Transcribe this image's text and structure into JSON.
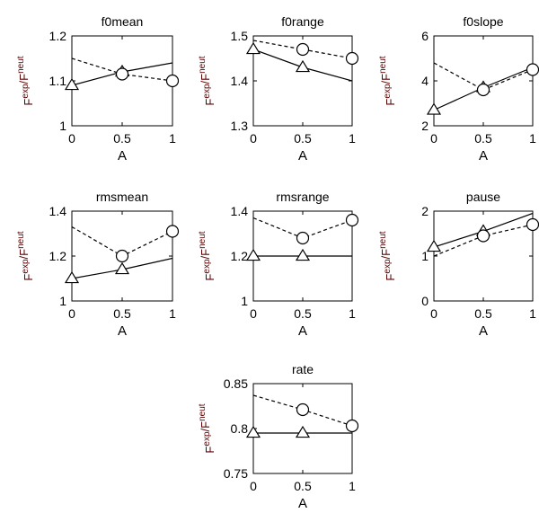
{
  "ylabel_base": "F",
  "ylabel_sup1": "exp",
  "ylabel_slash": "/",
  "ylabel_sup2": "neut",
  "chart_data": [
    {
      "type": "line",
      "title": "f0mean",
      "xlabel": "A",
      "x": [
        0,
        0.5,
        1
      ],
      "xticks": [
        "0",
        "0.5",
        "1"
      ],
      "ylim": [
        1.0,
        1.2
      ],
      "yticks": [
        "1",
        "1.1",
        "1.2"
      ],
      "series": [
        {
          "style": "solid",
          "marker": "triangle",
          "values": [
            1.09,
            1.12,
            1.14
          ]
        },
        {
          "style": "dashed",
          "marker": "circle",
          "values": [
            1.15,
            1.115,
            1.1
          ]
        }
      ],
      "dashed_start": 1.15,
      "dashed_marker_values": [
        null,
        1.115,
        1.1
      ],
      "solid_marker_values": [
        1.09,
        1.12,
        null
      ]
    },
    {
      "type": "line",
      "title": "f0range",
      "xlabel": "A",
      "x": [
        0,
        0.5,
        1
      ],
      "xticks": [
        "0",
        "0.5",
        "1"
      ],
      "ylim": [
        1.3,
        1.5
      ],
      "yticks": [
        "1.3",
        "1.4",
        "1.5"
      ],
      "series": [
        {
          "style": "solid",
          "marker": "triangle",
          "values": [
            1.47,
            1.43,
            1.4
          ]
        },
        {
          "style": "dashed",
          "marker": "circle",
          "values": [
            1.49,
            1.47,
            1.45
          ]
        }
      ],
      "solid_marker_values": [
        1.47,
        1.43,
        null
      ],
      "dashed_marker_values": [
        null,
        1.47,
        1.45
      ]
    },
    {
      "type": "line",
      "title": "f0slope",
      "xlabel": "A",
      "x": [
        0,
        0.5,
        1
      ],
      "xticks": [
        "0",
        "0.5",
        "1"
      ],
      "ylim": [
        2,
        6
      ],
      "yticks": [
        "2",
        "4",
        "6"
      ],
      "series": [
        {
          "style": "solid",
          "marker": "triangle",
          "values": [
            2.7,
            3.7,
            4.6
          ]
        },
        {
          "style": "dashed",
          "marker": "circle",
          "values": [
            4.8,
            3.6,
            4.5
          ]
        }
      ],
      "solid_marker_values": [
        2.7,
        3.7,
        null
      ],
      "dashed_marker_values": [
        null,
        3.6,
        4.5
      ]
    },
    {
      "type": "line",
      "title": "rmsmean",
      "xlabel": "A",
      "x": [
        0,
        0.5,
        1
      ],
      "xticks": [
        "0",
        "0.5",
        "1"
      ],
      "ylim": [
        1.0,
        1.4
      ],
      "yticks": [
        "1",
        "1.2",
        "1.4"
      ],
      "series": [
        {
          "style": "solid",
          "marker": "triangle",
          "values": [
            1.1,
            1.14,
            1.19
          ]
        },
        {
          "style": "dashed",
          "marker": "circle",
          "values": [
            1.33,
            1.2,
            1.31
          ]
        }
      ],
      "solid_marker_values": [
        1.1,
        1.14,
        null
      ],
      "dashed_marker_values": [
        null,
        1.2,
        1.31
      ]
    },
    {
      "type": "line",
      "title": "rmsrange",
      "xlabel": "A",
      "x": [
        0,
        0.5,
        1
      ],
      "xticks": [
        "0",
        "0.5",
        "1"
      ],
      "ylim": [
        1.0,
        1.4
      ],
      "yticks": [
        "1",
        "1.2",
        "1.4"
      ],
      "series": [
        {
          "style": "solid",
          "marker": "triangle",
          "values": [
            1.2,
            1.2,
            1.2
          ]
        },
        {
          "style": "dashed",
          "marker": "circle",
          "values": [
            1.37,
            1.28,
            1.36
          ]
        }
      ],
      "solid_marker_values": [
        1.2,
        1.2,
        null
      ],
      "dashed_marker_values": [
        null,
        1.28,
        1.36
      ]
    },
    {
      "type": "line",
      "title": "pause",
      "xlabel": "A",
      "x": [
        0,
        0.5,
        1
      ],
      "xticks": [
        "0",
        "0.5",
        "1"
      ],
      "ylim": [
        0,
        2
      ],
      "yticks": [
        "0",
        "1",
        "2"
      ],
      "series": [
        {
          "style": "solid",
          "marker": "triangle",
          "values": [
            1.2,
            1.55,
            1.95
          ]
        },
        {
          "style": "dashed",
          "marker": "circle",
          "values": [
            1.0,
            1.45,
            1.7
          ]
        }
      ],
      "solid_marker_values": [
        1.2,
        1.55,
        null
      ],
      "dashed_marker_values": [
        null,
        1.45,
        1.7
      ]
    },
    {
      "type": "line",
      "title": "rate",
      "xlabel": "A",
      "x": [
        0,
        0.5,
        1
      ],
      "xticks": [
        "0",
        "0.5",
        "1"
      ],
      "ylim": [
        0.75,
        0.85
      ],
      "yticks": [
        "0.75",
        "0.8",
        "0.85"
      ],
      "series": [
        {
          "style": "solid",
          "marker": "triangle",
          "values": [
            0.795,
            0.795,
            0.795
          ]
        },
        {
          "style": "dashed",
          "marker": "circle",
          "values": [
            0.837,
            0.821,
            0.803
          ]
        }
      ],
      "solid_marker_values": [
        0.795,
        0.795,
        null
      ],
      "dashed_marker_values": [
        null,
        0.821,
        0.803
      ]
    }
  ]
}
